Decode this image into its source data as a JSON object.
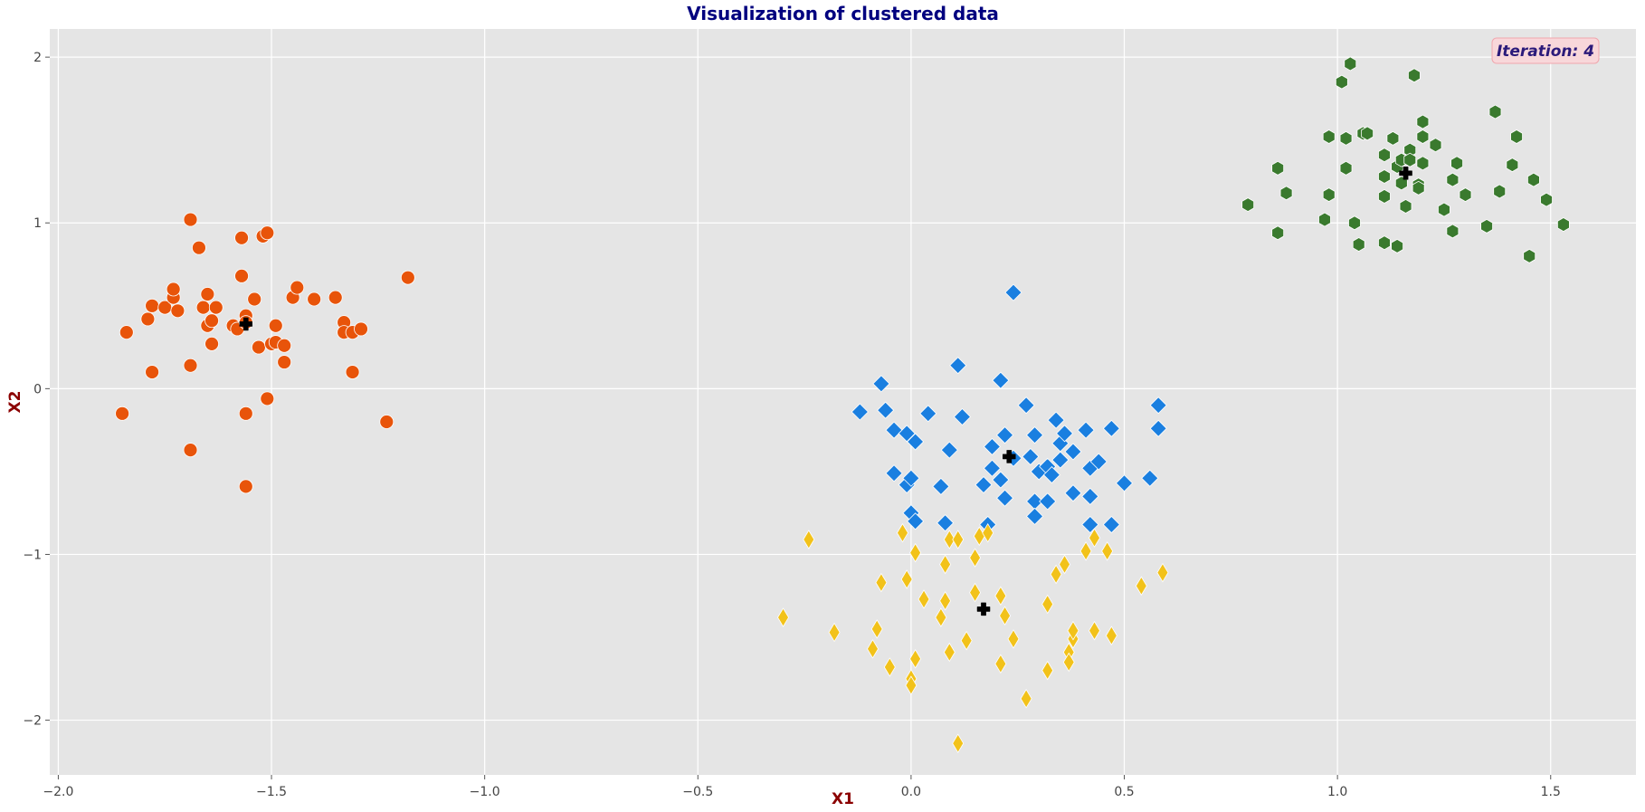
{
  "chart_data": {
    "type": "scatter",
    "title": "Visualization of clustered data",
    "xlabel": "X1",
    "ylabel": "X2",
    "xlim": [
      -2.02,
      1.7
    ],
    "ylim": [
      -2.33,
      2.17
    ],
    "xticks": [
      -2.0,
      -1.5,
      -1.0,
      -0.5,
      0.0,
      0.5,
      1.0,
      1.5
    ],
    "xtick_labels": [
      "−2.0",
      "−1.5",
      "−1.0",
      "−0.5",
      "0.0",
      "0.5",
      "1.0",
      "1.5"
    ],
    "yticks": [
      -2,
      -1,
      0,
      1,
      2
    ],
    "ytick_labels": [
      "−2",
      "−1",
      "0",
      "1",
      "2"
    ],
    "grid": true,
    "annotation": "Iteration: 4",
    "colors": {
      "background": "#e5e5e5",
      "grid": "#ffffff",
      "title": "#00007f",
      "axis_label": "#8b0000",
      "annotation_text": "#2b1a7a",
      "annotation_bg": "#f8d7da",
      "centroid": "#000000"
    },
    "series": [
      {
        "marker": "circle",
        "color": "#e8540a",
        "points": [
          [
            -1.85,
            -0.15
          ],
          [
            -1.84,
            0.34
          ],
          [
            -1.78,
            0.5
          ],
          [
            -1.78,
            0.1
          ],
          [
            -1.79,
            0.42
          ],
          [
            -1.75,
            0.49
          ],
          [
            -1.73,
            0.55
          ],
          [
            -1.73,
            0.6
          ],
          [
            -1.72,
            0.47
          ],
          [
            -1.69,
            1.02
          ],
          [
            -1.69,
            0.14
          ],
          [
            -1.69,
            -0.37
          ],
          [
            -1.67,
            0.85
          ],
          [
            -1.66,
            0.49
          ],
          [
            -1.65,
            0.57
          ],
          [
            -1.65,
            0.38
          ],
          [
            -1.64,
            0.41
          ],
          [
            -1.64,
            0.27
          ],
          [
            -1.63,
            0.49
          ],
          [
            -1.59,
            0.38
          ],
          [
            -1.58,
            0.36
          ],
          [
            -1.57,
            0.91
          ],
          [
            -1.57,
            0.68
          ],
          [
            -1.56,
            0.44
          ],
          [
            -1.56,
            0.4
          ],
          [
            -1.56,
            -0.15
          ],
          [
            -1.56,
            -0.59
          ],
          [
            -1.54,
            0.54
          ],
          [
            -1.53,
            0.25
          ],
          [
            -1.52,
            0.92
          ],
          [
            -1.51,
            0.94
          ],
          [
            -1.51,
            -0.06
          ],
          [
            -1.5,
            0.27
          ],
          [
            -1.49,
            0.38
          ],
          [
            -1.49,
            0.28
          ],
          [
            -1.47,
            0.26
          ],
          [
            -1.47,
            0.16
          ],
          [
            -1.45,
            0.55
          ],
          [
            -1.44,
            0.61
          ],
          [
            -1.4,
            0.54
          ],
          [
            -1.35,
            0.55
          ],
          [
            -1.33,
            0.4
          ],
          [
            -1.33,
            0.34
          ],
          [
            -1.31,
            0.34
          ],
          [
            -1.31,
            0.1
          ],
          [
            -1.29,
            0.36
          ],
          [
            -1.23,
            -0.2
          ],
          [
            -1.18,
            0.67
          ]
        ]
      },
      {
        "marker": "diamond",
        "color": "#1a7fe0",
        "points": [
          [
            -0.12,
            -0.14
          ],
          [
            -0.07,
            0.03
          ],
          [
            -0.06,
            -0.13
          ],
          [
            -0.04,
            -0.25
          ],
          [
            -0.04,
            -0.51
          ],
          [
            -0.01,
            -0.27
          ],
          [
            -0.01,
            -0.58
          ],
          [
            0.0,
            -0.54
          ],
          [
            0.0,
            -0.75
          ],
          [
            0.01,
            -0.32
          ],
          [
            0.01,
            -0.8
          ],
          [
            0.04,
            -0.15
          ],
          [
            0.07,
            -0.59
          ],
          [
            0.08,
            -0.81
          ],
          [
            0.09,
            -0.37
          ],
          [
            0.11,
            0.14
          ],
          [
            0.12,
            -0.17
          ],
          [
            0.17,
            -0.58
          ],
          [
            0.18,
            -0.82
          ],
          [
            0.19,
            -0.35
          ],
          [
            0.19,
            -0.48
          ],
          [
            0.21,
            0.05
          ],
          [
            0.21,
            -0.55
          ],
          [
            0.22,
            -0.28
          ],
          [
            0.22,
            -0.66
          ],
          [
            0.24,
            -0.42
          ],
          [
            0.24,
            0.58
          ],
          [
            0.27,
            -0.1
          ],
          [
            0.28,
            -0.41
          ],
          [
            0.29,
            -0.28
          ],
          [
            0.29,
            -0.68
          ],
          [
            0.29,
            -0.77
          ],
          [
            0.3,
            -0.5
          ],
          [
            0.32,
            -0.47
          ],
          [
            0.32,
            -0.68
          ],
          [
            0.33,
            -0.52
          ],
          [
            0.34,
            -0.19
          ],
          [
            0.35,
            -0.33
          ],
          [
            0.35,
            -0.43
          ],
          [
            0.36,
            -0.27
          ],
          [
            0.38,
            -0.38
          ],
          [
            0.38,
            -0.63
          ],
          [
            0.41,
            -0.25
          ],
          [
            0.42,
            -0.65
          ],
          [
            0.42,
            -0.82
          ],
          [
            0.42,
            -0.48
          ],
          [
            0.44,
            -0.44
          ],
          [
            0.47,
            -0.24
          ],
          [
            0.47,
            -0.82
          ],
          [
            0.5,
            -0.57
          ],
          [
            0.56,
            -0.54
          ],
          [
            0.58,
            -0.1
          ],
          [
            0.58,
            -0.24
          ]
        ]
      },
      {
        "marker": "thin-diamond",
        "color": "#f2c21a",
        "points": [
          [
            -0.3,
            -1.38
          ],
          [
            -0.24,
            -0.91
          ],
          [
            -0.18,
            -1.47
          ],
          [
            -0.09,
            -1.57
          ],
          [
            -0.08,
            -1.45
          ],
          [
            -0.07,
            -1.17
          ],
          [
            -0.05,
            -1.68
          ],
          [
            -0.02,
            -0.87
          ],
          [
            -0.01,
            -1.15
          ],
          [
            0.0,
            -1.75
          ],
          [
            0.0,
            -1.79
          ],
          [
            0.01,
            -0.99
          ],
          [
            0.01,
            -1.63
          ],
          [
            0.03,
            -1.27
          ],
          [
            0.07,
            -1.38
          ],
          [
            0.08,
            -1.28
          ],
          [
            0.08,
            -1.06
          ],
          [
            0.09,
            -0.91
          ],
          [
            0.09,
            -1.59
          ],
          [
            0.11,
            -0.91
          ],
          [
            0.11,
            -2.14
          ],
          [
            0.13,
            -1.52
          ],
          [
            0.15,
            -1.02
          ],
          [
            0.15,
            -1.23
          ],
          [
            0.16,
            -0.89
          ],
          [
            0.18,
            -0.87
          ],
          [
            0.21,
            -1.66
          ],
          [
            0.21,
            -1.25
          ],
          [
            0.22,
            -1.37
          ],
          [
            0.24,
            -1.51
          ],
          [
            0.27,
            -1.87
          ],
          [
            0.32,
            -1.7
          ],
          [
            0.32,
            -1.3
          ],
          [
            0.34,
            -1.12
          ],
          [
            0.36,
            -1.06
          ],
          [
            0.37,
            -1.59
          ],
          [
            0.37,
            -1.65
          ],
          [
            0.38,
            -1.51
          ],
          [
            0.38,
            -1.46
          ],
          [
            0.41,
            -0.98
          ],
          [
            0.43,
            -1.46
          ],
          [
            0.43,
            -0.9
          ],
          [
            0.46,
            -0.98
          ],
          [
            0.47,
            -1.49
          ],
          [
            0.54,
            -1.19
          ],
          [
            0.59,
            -1.11
          ]
        ]
      },
      {
        "marker": "hexagon",
        "color": "#3a7a2e",
        "points": [
          [
            0.79,
            1.11
          ],
          [
            0.86,
            1.33
          ],
          [
            0.86,
            0.94
          ],
          [
            0.88,
            1.18
          ],
          [
            0.97,
            1.02
          ],
          [
            0.98,
            1.52
          ],
          [
            0.98,
            1.17
          ],
          [
            1.01,
            1.85
          ],
          [
            1.02,
            1.51
          ],
          [
            1.02,
            1.33
          ],
          [
            1.03,
            1.96
          ],
          [
            1.04,
            1.0
          ],
          [
            1.05,
            0.87
          ],
          [
            1.06,
            1.54
          ],
          [
            1.07,
            1.54
          ],
          [
            1.11,
            1.41
          ],
          [
            1.11,
            1.28
          ],
          [
            1.11,
            1.16
          ],
          [
            1.11,
            0.88
          ],
          [
            1.13,
            1.51
          ],
          [
            1.14,
            0.86
          ],
          [
            1.14,
            1.34
          ],
          [
            1.15,
            1.38
          ],
          [
            1.15,
            1.24
          ],
          [
            1.16,
            1.1
          ],
          [
            1.17,
            1.44
          ],
          [
            1.17,
            1.38
          ],
          [
            1.18,
            1.89
          ],
          [
            1.19,
            1.23
          ],
          [
            1.19,
            1.21
          ],
          [
            1.2,
            1.52
          ],
          [
            1.2,
            1.36
          ],
          [
            1.2,
            1.61
          ],
          [
            1.23,
            1.47
          ],
          [
            1.25,
            1.08
          ],
          [
            1.27,
            1.26
          ],
          [
            1.27,
            0.95
          ],
          [
            1.28,
            1.36
          ],
          [
            1.3,
            1.17
          ],
          [
            1.35,
            0.98
          ],
          [
            1.37,
            1.67
          ],
          [
            1.38,
            1.19
          ],
          [
            1.41,
            1.35
          ],
          [
            1.42,
            1.52
          ],
          [
            1.45,
            0.8
          ],
          [
            1.46,
            1.26
          ],
          [
            1.49,
            1.14
          ],
          [
            1.53,
            0.99
          ]
        ]
      }
    ],
    "centroids": [
      [
        -1.56,
        0.39
      ],
      [
        0.23,
        -0.41
      ],
      [
        0.17,
        -1.33
      ],
      [
        1.16,
        1.3
      ]
    ]
  }
}
